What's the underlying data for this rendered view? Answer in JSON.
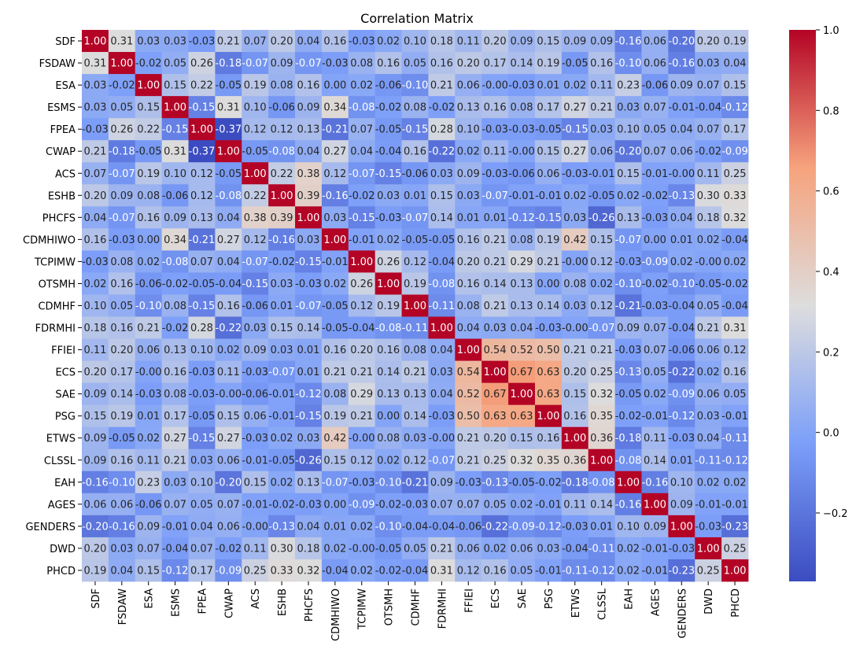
{
  "chart_data": {
    "type": "heatmap",
    "title": "Correlation Matrix",
    "labels": [
      "SDF",
      "FSDAW",
      "ESA",
      "ESMS",
      "FPEA",
      "CWAP",
      "ACS",
      "ESHB",
      "PHCFS",
      "CDMHIWO",
      "TCPIMW",
      "OTSMH",
      "CDMHF",
      "FDRMHI",
      "FFIEI",
      "ECS",
      "SAE",
      "PSG",
      "ETWS",
      "CLSSL",
      "EAH",
      "AGES",
      "GENDERS",
      "DWD",
      "PHCD"
    ],
    "cell_labels": [
      [
        "1.00",
        "0.31",
        "0.03",
        "0.03",
        "-0.03",
        "0.21",
        "0.07",
        "0.20",
        "0.04",
        "0.16",
        "-0.03",
        "0.02",
        "0.10",
        "0.18",
        "0.11",
        "0.20",
        "0.09",
        "0.15",
        "0.09",
        "0.09",
        "-0.16",
        "0.06",
        "-0.20",
        "0.20",
        "0.19"
      ],
      [
        "0.31",
        "1.00",
        "-0.02",
        "0.05",
        "0.26",
        "-0.18",
        "-0.07",
        "0.09",
        "-0.07",
        "-0.03",
        "0.08",
        "0.16",
        "0.05",
        "0.16",
        "0.20",
        "0.17",
        "0.14",
        "0.19",
        "-0.05",
        "0.16",
        "-0.10",
        "0.06",
        "-0.16",
        "0.03",
        "0.04"
      ],
      [
        "0.03",
        "-0.02",
        "1.00",
        "0.15",
        "0.22",
        "-0.05",
        "0.19",
        "0.08",
        "0.16",
        "0.00",
        "0.02",
        "-0.06",
        "-0.10",
        "0.21",
        "0.06",
        "-0.00",
        "-0.03",
        "0.01",
        "0.02",
        "0.11",
        "0.23",
        "-0.06",
        "0.09",
        "0.07",
        "0.15"
      ],
      [
        "0.03",
        "0.05",
        "0.15",
        "1.00",
        "-0.15",
        "0.31",
        "0.10",
        "-0.06",
        "0.09",
        "0.34",
        "-0.08",
        "-0.02",
        "0.08",
        "-0.02",
        "0.13",
        "0.16",
        "0.08",
        "0.17",
        "0.27",
        "0.21",
        "0.03",
        "0.07",
        "-0.01",
        "-0.04",
        "-0.12"
      ],
      [
        "-0.03",
        "0.26",
        "0.22",
        "-0.15",
        "1.00",
        "-0.37",
        "0.12",
        "0.12",
        "0.13",
        "-0.21",
        "0.07",
        "-0.05",
        "-0.15",
        "0.28",
        "0.10",
        "-0.03",
        "-0.03",
        "-0.05",
        "-0.15",
        "0.03",
        "0.10",
        "0.05",
        "0.04",
        "0.07",
        "0.17"
      ],
      [
        "0.21",
        "-0.18",
        "-0.05",
        "0.31",
        "-0.37",
        "1.00",
        "-0.05",
        "-0.08",
        "0.04",
        "0.27",
        "0.04",
        "-0.04",
        "0.16",
        "-0.22",
        "0.02",
        "0.11",
        "-0.00",
        "0.15",
        "0.27",
        "0.06",
        "-0.20",
        "0.07",
        "0.06",
        "-0.02",
        "-0.09"
      ],
      [
        "0.07",
        "-0.07",
        "0.19",
        "0.10",
        "0.12",
        "-0.05",
        "1.00",
        "0.22",
        "0.38",
        "0.12",
        "-0.07",
        "-0.15",
        "-0.06",
        "0.03",
        "0.09",
        "-0.03",
        "-0.06",
        "0.06",
        "-0.03",
        "-0.01",
        "0.15",
        "-0.01",
        "-0.00",
        "0.11",
        "0.25"
      ],
      [
        "0.20",
        "0.09",
        "0.08",
        "-0.06",
        "0.12",
        "-0.08",
        "0.22",
        "1.00",
        "0.39",
        "-0.16",
        "-0.02",
        "0.03",
        "0.01",
        "0.15",
        "0.03",
        "-0.07",
        "-0.01",
        "-0.01",
        "0.02",
        "-0.05",
        "0.02",
        "-0.02",
        "-0.13",
        "0.30",
        "0.33"
      ],
      [
        "0.04",
        "-0.07",
        "0.16",
        "0.09",
        "0.13",
        "0.04",
        "0.38",
        "0.39",
        "1.00",
        "0.03",
        "-0.15",
        "-0.03",
        "-0.07",
        "0.14",
        "0.01",
        "0.01",
        "-0.12",
        "-0.15",
        "0.03",
        "-0.26",
        "0.13",
        "-0.03",
        "0.04",
        "0.18",
        "0.32"
      ],
      [
        "0.16",
        "-0.03",
        "0.00",
        "0.34",
        "-0.21",
        "0.27",
        "0.12",
        "-0.16",
        "0.03",
        "1.00",
        "-0.01",
        "0.02",
        "-0.05",
        "-0.05",
        "0.16",
        "0.21",
        "0.08",
        "0.19",
        "0.42",
        "0.15",
        "-0.07",
        "0.00",
        "0.01",
        "0.02",
        "-0.04"
      ],
      [
        "-0.03",
        "0.08",
        "0.02",
        "-0.08",
        "0.07",
        "0.04",
        "-0.07",
        "-0.02",
        "-0.15",
        "-0.01",
        "1.00",
        "0.26",
        "0.12",
        "-0.04",
        "0.20",
        "0.21",
        "0.29",
        "0.21",
        "-0.00",
        "0.12",
        "-0.03",
        "-0.09",
        "0.02",
        "-0.00",
        "0.02"
      ],
      [
        "0.02",
        "0.16",
        "-0.06",
        "-0.02",
        "-0.05",
        "-0.04",
        "-0.15",
        "0.03",
        "-0.03",
        "0.02",
        "0.26",
        "1.00",
        "0.19",
        "-0.08",
        "0.16",
        "0.14",
        "0.13",
        "0.00",
        "0.08",
        "0.02",
        "-0.10",
        "-0.02",
        "-0.10",
        "-0.05",
        "-0.02"
      ],
      [
        "0.10",
        "0.05",
        "-0.10",
        "0.08",
        "-0.15",
        "0.16",
        "-0.06",
        "0.01",
        "-0.07",
        "-0.05",
        "0.12",
        "0.19",
        "1.00",
        "-0.11",
        "0.08",
        "0.21",
        "0.13",
        "0.14",
        "0.03",
        "0.12",
        "-0.21",
        "-0.03",
        "-0.04",
        "0.05",
        "-0.04"
      ],
      [
        "0.18",
        "0.16",
        "0.21",
        "-0.02",
        "0.28",
        "-0.22",
        "0.03",
        "0.15",
        "0.14",
        "-0.05",
        "-0.04",
        "-0.08",
        "-0.11",
        "1.00",
        "0.04",
        "0.03",
        "0.04",
        "-0.03",
        "-0.00",
        "-0.07",
        "0.09",
        "0.07",
        "-0.04",
        "0.21",
        "0.31"
      ],
      [
        "0.11",
        "0.20",
        "0.06",
        "0.13",
        "0.10",
        "0.02",
        "0.09",
        "0.03",
        "0.01",
        "0.16",
        "0.20",
        "0.16",
        "0.08",
        "0.04",
        "1.00",
        "0.54",
        "0.52",
        "0.50",
        "0.21",
        "0.21",
        "-0.03",
        "0.07",
        "-0.06",
        "0.06",
        "0.12"
      ],
      [
        "0.20",
        "0.17",
        "-0.00",
        "0.16",
        "-0.03",
        "0.11",
        "-0.03",
        "-0.07",
        "0.01",
        "0.21",
        "0.21",
        "0.14",
        "0.21",
        "0.03",
        "0.54",
        "1.00",
        "0.67",
        "0.63",
        "0.20",
        "0.25",
        "-0.13",
        "0.05",
        "-0.22",
        "0.02",
        "0.16"
      ],
      [
        "0.09",
        "0.14",
        "-0.03",
        "0.08",
        "-0.03",
        "-0.00",
        "-0.06",
        "-0.01",
        "-0.12",
        "0.08",
        "0.29",
        "0.13",
        "0.13",
        "0.04",
        "0.52",
        "0.67",
        "1.00",
        "0.63",
        "0.15",
        "0.32",
        "-0.05",
        "0.02",
        "-0.09",
        "0.06",
        "0.05"
      ],
      [
        "0.15",
        "0.19",
        "0.01",
        "0.17",
        "-0.05",
        "0.15",
        "0.06",
        "-0.01",
        "-0.15",
        "0.19",
        "0.21",
        "0.00",
        "0.14",
        "-0.03",
        "0.50",
        "0.63",
        "0.63",
        "1.00",
        "0.16",
        "0.35",
        "-0.02",
        "-0.01",
        "-0.12",
        "0.03",
        "-0.01"
      ],
      [
        "0.09",
        "-0.05",
        "0.02",
        "0.27",
        "-0.15",
        "0.27",
        "-0.03",
        "0.02",
        "0.03",
        "0.42",
        "-0.00",
        "0.08",
        "0.03",
        "-0.00",
        "0.21",
        "0.20",
        "0.15",
        "0.16",
        "1.00",
        "0.36",
        "-0.18",
        "0.11",
        "-0.03",
        "0.04",
        "-0.11"
      ],
      [
        "0.09",
        "0.16",
        "0.11",
        "0.21",
        "0.03",
        "0.06",
        "-0.01",
        "-0.05",
        "-0.26",
        "0.15",
        "0.12",
        "0.02",
        "0.12",
        "-0.07",
        "0.21",
        "0.25",
        "0.32",
        "0.35",
        "0.36",
        "1.00",
        "-0.08",
        "0.14",
        "0.01",
        "-0.11",
        "-0.12"
      ],
      [
        "-0.16",
        "-0.10",
        "0.23",
        "0.03",
        "0.10",
        "-0.20",
        "0.15",
        "0.02",
        "0.13",
        "-0.07",
        "-0.03",
        "-0.10",
        "-0.21",
        "0.09",
        "-0.03",
        "-0.13",
        "-0.05",
        "-0.02",
        "-0.18",
        "-0.08",
        "1.00",
        "-0.16",
        "0.10",
        "0.02",
        "0.02"
      ],
      [
        "0.06",
        "0.06",
        "-0.06",
        "0.07",
        "0.05",
        "0.07",
        "-0.01",
        "-0.02",
        "-0.03",
        "0.00",
        "-0.09",
        "-0.02",
        "-0.03",
        "0.07",
        "0.07",
        "0.05",
        "0.02",
        "-0.01",
        "0.11",
        "0.14",
        "-0.16",
        "1.00",
        "0.09",
        "-0.01",
        "-0.01"
      ],
      [
        "-0.20",
        "-0.16",
        "0.09",
        "-0.01",
        "0.04",
        "0.06",
        "-0.00",
        "-0.13",
        "0.04",
        "0.01",
        "0.02",
        "-0.10",
        "-0.04",
        "-0.04",
        "-0.06",
        "-0.22",
        "-0.09",
        "-0.12",
        "-0.03",
        "0.01",
        "0.10",
        "0.09",
        "1.00",
        "-0.03",
        "-0.23"
      ],
      [
        "0.20",
        "0.03",
        "0.07",
        "-0.04",
        "0.07",
        "-0.02",
        "0.11",
        "0.30",
        "0.18",
        "0.02",
        "-0.00",
        "-0.05",
        "0.05",
        "0.21",
        "0.06",
        "0.02",
        "0.06",
        "0.03",
        "-0.04",
        "-0.11",
        "0.02",
        "-0.01",
        "-0.03",
        "1.00",
        "0.25"
      ],
      [
        "0.19",
        "0.04",
        "0.15",
        "-0.12",
        "0.17",
        "-0.09",
        "0.25",
        "0.33",
        "0.32",
        "-0.04",
        "0.02",
        "-0.02",
        "-0.04",
        "0.31",
        "0.12",
        "0.16",
        "0.05",
        "-0.01",
        "-0.11",
        "-0.12",
        "0.02",
        "-0.01",
        "-0.23",
        "0.25",
        "1.00"
      ]
    ],
    "colormap": "coolwarm",
    "vmin": -0.37,
    "vmax": 1.0,
    "colorbar_ticks": [
      1.0,
      0.8,
      0.6,
      0.4,
      0.2,
      0.0,
      -0.2
    ],
    "colorbar_tick_labels": [
      "1.0",
      "0.8",
      "0.6",
      "0.4",
      "0.2",
      "0.0",
      "−0.2"
    ],
    "xlabel": "",
    "ylabel": ""
  }
}
